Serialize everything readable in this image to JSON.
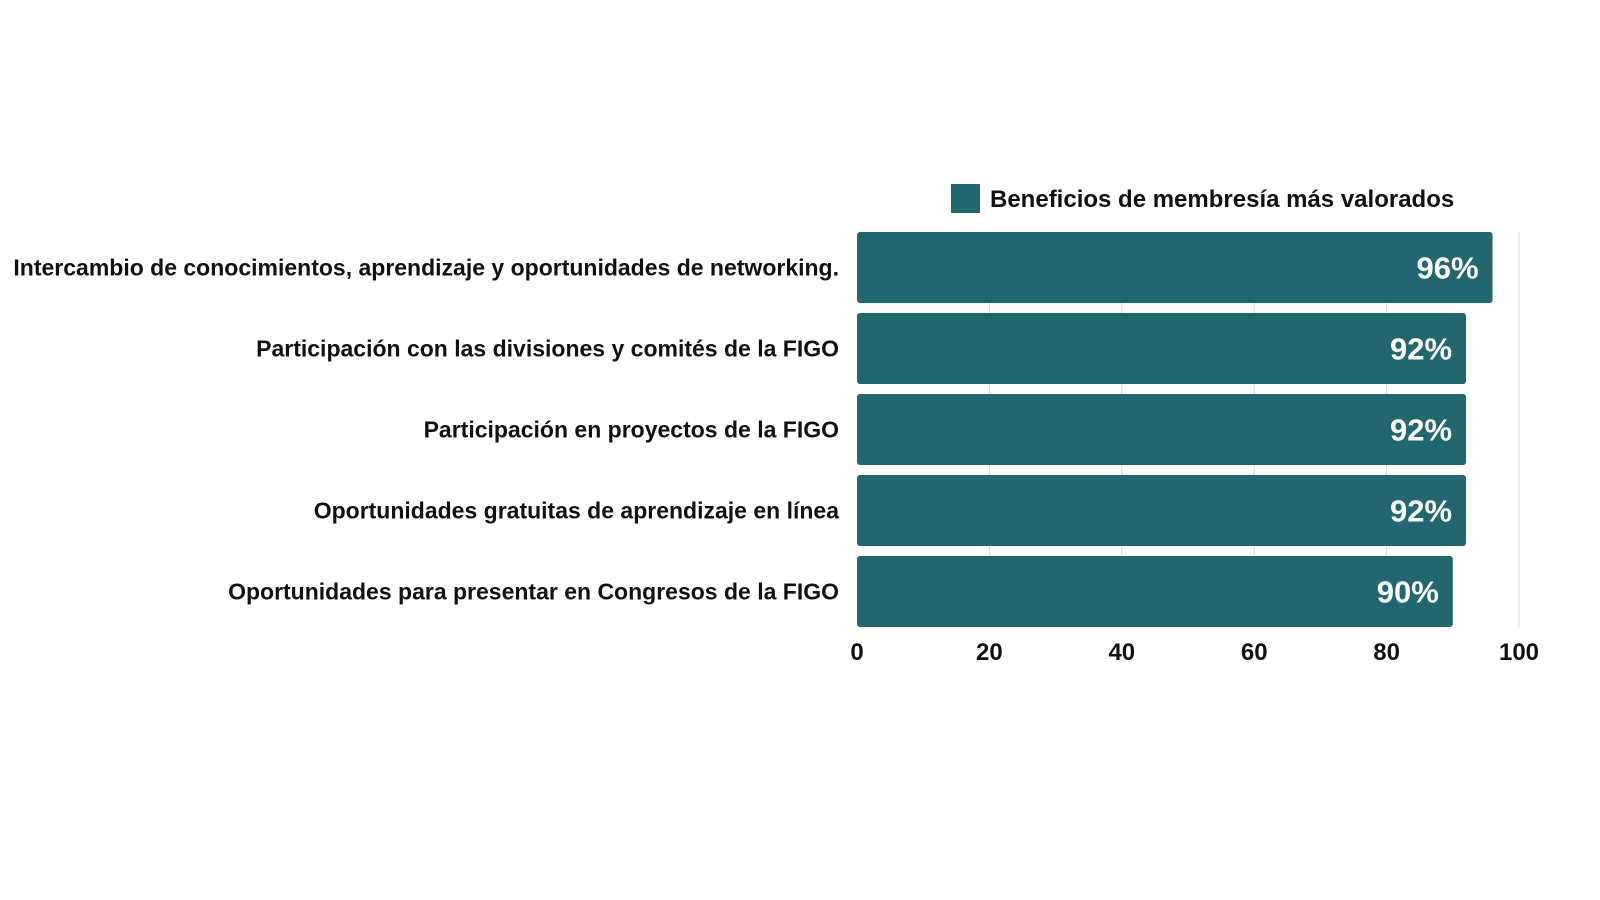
{
  "chart_data": {
    "type": "bar",
    "orientation": "horizontal",
    "categories": [
      "Intercambio de conocimientos, aprendizaje y oportunidades de networking.",
      "Participación con las divisiones y comités de la FIGO",
      "Participación en proyectos de la FIGO",
      "Oportunidades gratuitas de aprendizaje en línea",
      "Oportunidades para presentar en Congresos de la FIGO"
    ],
    "series": [
      {
        "name": "Beneficios de membresía más valorados",
        "values": [
          96,
          92,
          92,
          92,
          90
        ],
        "labels": [
          "96%",
          "92%",
          "92%",
          "92%",
          "90%"
        ],
        "color": "#22666f"
      }
    ],
    "xlim": [
      0,
      100
    ],
    "xticks": [
      0,
      20,
      40,
      60,
      80,
      100
    ],
    "title": "",
    "xlabel": "",
    "ylabel": "",
    "grid": "vertical",
    "legend": "top-right"
  }
}
